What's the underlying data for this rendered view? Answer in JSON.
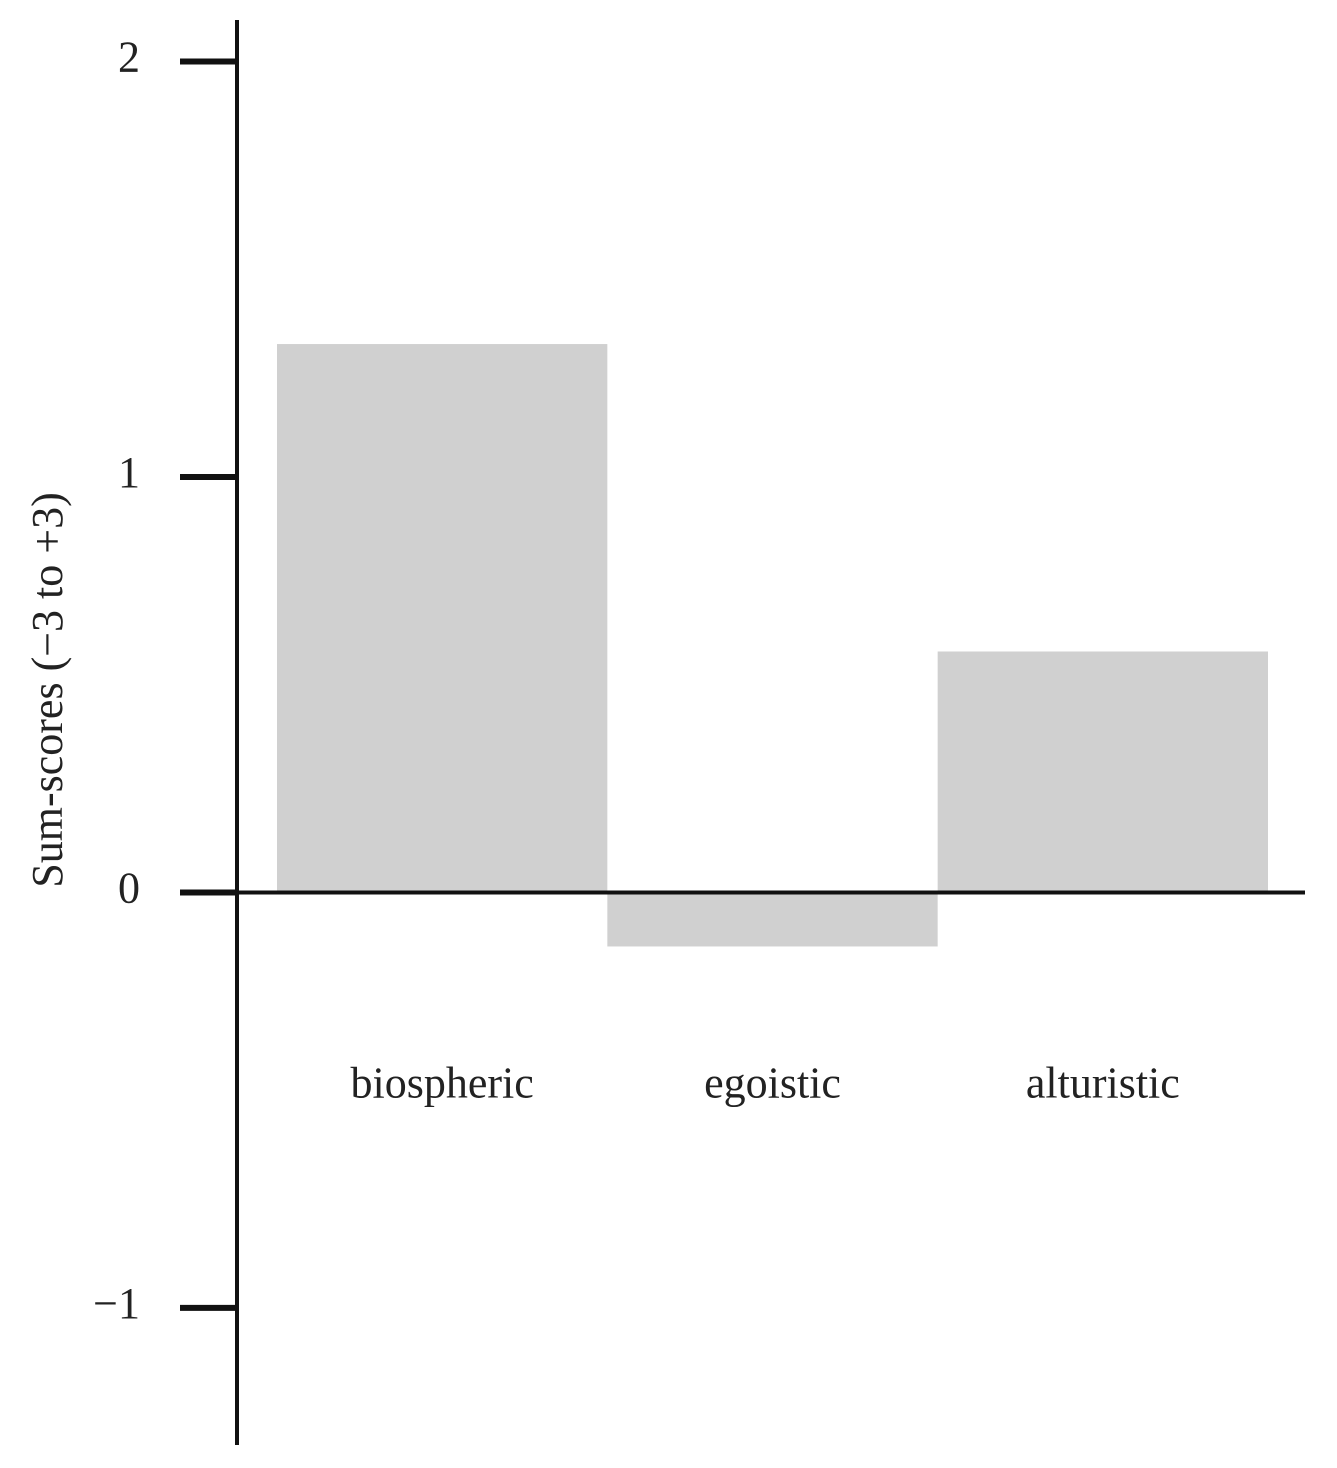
{
  "chart_data": {
    "type": "bar",
    "y_label": "Sum-scores (−3 to +3)",
    "categories": [
      "biospheric",
      "egoistic",
      "alturistic"
    ],
    "values": [
      1.32,
      -0.13,
      0.58
    ],
    "color": "#d0d0d0",
    "ylim": [
      -1.33,
      2.1
    ],
    "yticks": [
      {
        "value": -1,
        "label": "−1"
      },
      0,
      1,
      2
    ],
    "grid": false
  }
}
